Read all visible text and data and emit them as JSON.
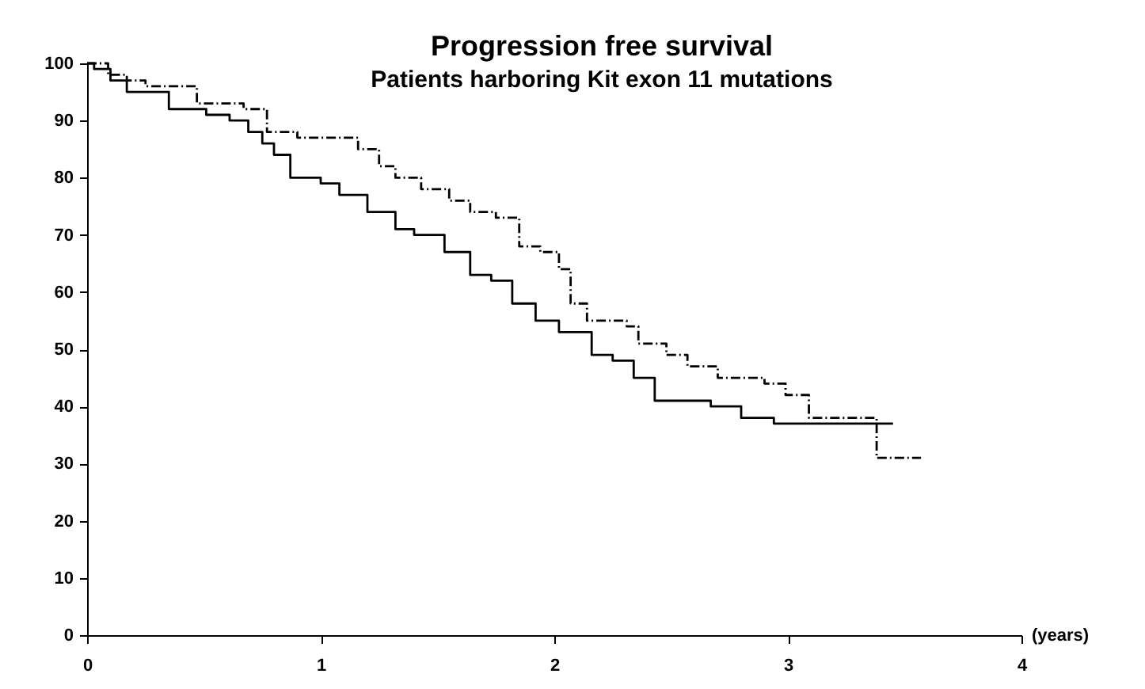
{
  "chart_data": {
    "type": "step",
    "title": "Progression free survival",
    "subtitle": "Patients harboring Kit exon 11 mutations",
    "xlabel": "(years)",
    "xlim": [
      0,
      4
    ],
    "xticks": [
      0,
      1,
      2,
      3,
      4
    ],
    "ylim": [
      0,
      100
    ],
    "yticks": [
      0,
      10,
      20,
      30,
      40,
      50,
      60,
      70,
      80,
      90,
      100
    ],
    "grid": false,
    "legend": false,
    "marker": "none",
    "series": [
      {
        "color": "#000000",
        "line_style": "solid",
        "x": [
          0,
          0.03,
          0.1,
          0.17,
          0.35,
          0.51,
          0.61,
          0.69,
          0.75,
          0.8,
          0.87,
          1.0,
          1.08,
          1.2,
          1.32,
          1.4,
          1.53,
          1.64,
          1.73,
          1.82,
          1.92,
          2.02,
          2.16,
          2.25,
          2.34,
          2.43,
          2.67,
          2.8,
          2.94,
          3.45
        ],
        "values": [
          100,
          99,
          97,
          95,
          92,
          91,
          90,
          88,
          86,
          84,
          80,
          79,
          77,
          74,
          71,
          70,
          67,
          63,
          62,
          58,
          55,
          53,
          49,
          48,
          45,
          41,
          40,
          38,
          37,
          37
        ]
      },
      {
        "color": "#000000",
        "line_style": "dashed",
        "x": [
          0,
          0.09,
          0.17,
          0.25,
          0.47,
          0.67,
          0.77,
          0.9,
          1.16,
          1.25,
          1.32,
          1.43,
          1.55,
          1.64,
          1.75,
          1.85,
          1.94,
          2.02,
          2.07,
          2.14,
          2.31,
          2.36,
          2.48,
          2.57,
          2.7,
          2.9,
          2.99,
          3.09,
          3.38,
          3.57
        ],
        "values": [
          100,
          98,
          97,
          96,
          93,
          92,
          88,
          87,
          85,
          82,
          80,
          78,
          76,
          74,
          73,
          68,
          67,
          64,
          58,
          55,
          54,
          51,
          49,
          47,
          45,
          44,
          42,
          38,
          31,
          31
        ]
      }
    ]
  }
}
